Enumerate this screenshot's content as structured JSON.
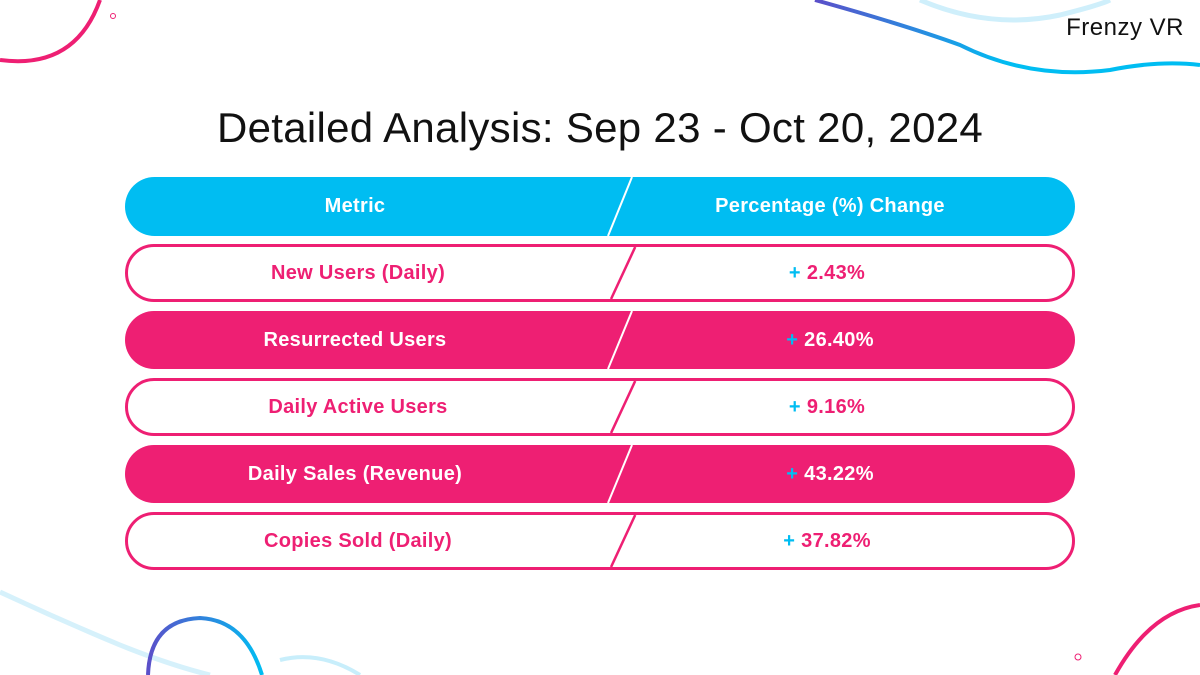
{
  "brand": "Frenzy VR",
  "title": "Detailed Analysis: Sep 23 - Oct 20, 2024",
  "table": {
    "headers": [
      "Metric",
      "Percentage (%) Change"
    ],
    "rows": [
      {
        "metric": "New Users (Daily)",
        "sign": "+",
        "change": "2.43%",
        "style": "outline"
      },
      {
        "metric": "Resurrected Users",
        "sign": "+",
        "change": "26.40%",
        "style": "filled"
      },
      {
        "metric": "Daily Active Users",
        "sign": "+",
        "change": "9.16%",
        "style": "outline"
      },
      {
        "metric": "Daily Sales (Revenue)",
        "sign": "+",
        "change": "43.22%",
        "style": "filled"
      },
      {
        "metric": "Copies Sold (Daily)",
        "sign": "+",
        "change": "37.82%",
        "style": "outline"
      }
    ]
  },
  "colors": {
    "accent_pink": "#EE1F73",
    "accent_cyan": "#00BDF2",
    "accent_purple": "#5B4FC9",
    "text_dark": "#111111"
  }
}
